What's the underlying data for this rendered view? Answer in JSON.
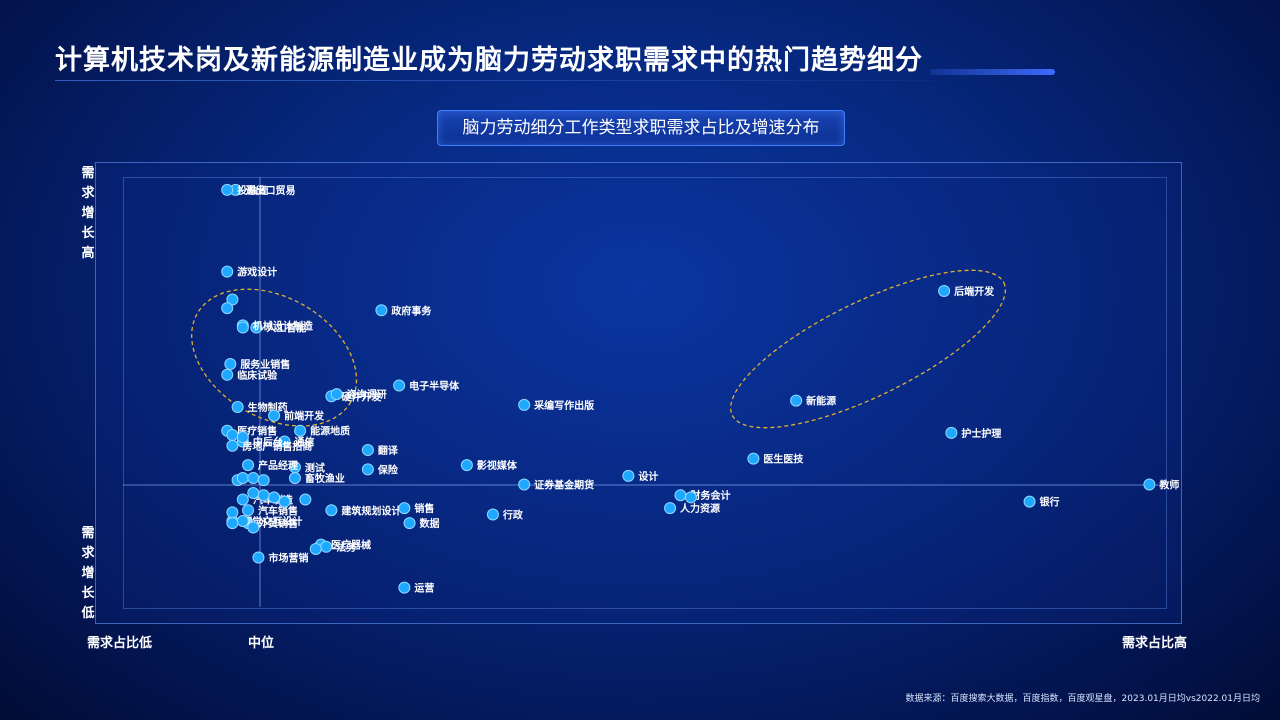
{
  "header": {
    "title": "计算机技术岗及新能源制造业成为脑力劳动求职需求中的热门趋势细分",
    "subtitle": "脑力劳动细分工作类型求职需求占比及增速分布"
  },
  "axes": {
    "y_high": "需求增长高",
    "y_low": "需求增长低",
    "x_low": "需求占比低",
    "x_mid": "中位",
    "x_high": "需求占比高"
  },
  "source": "数据来源：百度搜索大数据，百度指数，百度观星盘，2023.01月日均vs2022.01月日均",
  "colors": {
    "point": "#1fa8ff",
    "highlight_ellipse": "#e0b030",
    "background": "#06267a"
  },
  "chart_data": {
    "type": "scatter",
    "title": "脑力劳动细分工作类型求职需求占比及增速分布",
    "xlabel": "需求占比",
    "ylabel": "需求增长",
    "x_range": [
      0,
      100
    ],
    "y_range": [
      0,
      100
    ],
    "grid": false,
    "points": [
      {
        "label": "进出口贸易",
        "x": 10.8,
        "y": 97
      },
      {
        "label": "投融资",
        "x": 10.0,
        "y": 97
      },
      {
        "label": "游戏设计",
        "x": 10.0,
        "y": 78
      },
      {
        "label": "政府事务",
        "x": 24.8,
        "y": 69
      },
      {
        "label": "人工智能",
        "x": 12.8,
        "y": 65
      },
      {
        "label": "机械设计制造",
        "x": 11.5,
        "y": 65.5
      },
      {
        "label": "服务业销售",
        "x": 10.3,
        "y": 56.5
      },
      {
        "label": "临床试验",
        "x": 10.0,
        "y": 54
      },
      {
        "label": "硬件开发",
        "x": 20.0,
        "y": 49
      },
      {
        "label": "咨询调研",
        "x": 20.5,
        "y": 49.5
      },
      {
        "label": "电子半导体",
        "x": 26.5,
        "y": 51.5
      },
      {
        "label": "采编写作出版",
        "x": 38.5,
        "y": 47
      },
      {
        "label": "后端开发",
        "x": 78.8,
        "y": 73.5
      },
      {
        "label": "新能源",
        "x": 64.6,
        "y": 48
      },
      {
        "label": "护士护理",
        "x": 79.5,
        "y": 40.5
      },
      {
        "label": "生物制药",
        "x": 11.0,
        "y": 46.5
      },
      {
        "label": "前端开发",
        "x": 14.5,
        "y": 44.5
      },
      {
        "label": "医疗销售",
        "x": 10.0,
        "y": 41
      },
      {
        "label": "能源地质",
        "x": 17.0,
        "y": 41
      },
      {
        "label": "通信",
        "x": 15.5,
        "y": 38.5
      },
      {
        "label": "中后台",
        "x": 11.5,
        "y": 38.5
      },
      {
        "label": "翻译",
        "x": 23.5,
        "y": 36.5
      },
      {
        "label": "医生医技",
        "x": 60.5,
        "y": 34.5
      },
      {
        "label": "房地产销售招商",
        "x": 10.5,
        "y": 37.5
      },
      {
        "label": "测试",
        "x": 16.5,
        "y": 32.5
      },
      {
        "label": "产品经理",
        "x": 12.0,
        "y": 33
      },
      {
        "label": "保险",
        "x": 23.5,
        "y": 32
      },
      {
        "label": "影视媒体",
        "x": 33.0,
        "y": 33
      },
      {
        "label": "设计",
        "x": 48.5,
        "y": 30.5
      },
      {
        "label": "畜牧渔业",
        "x": 16.5,
        "y": 30
      },
      {
        "label": "证券基金期货",
        "x": 38.5,
        "y": 28.5
      },
      {
        "label": "教师",
        "x": 98.5,
        "y": 28.5
      },
      {
        "label": "财务会计",
        "x": 53.5,
        "y": 26
      },
      {
        "label": "银行",
        "x": 87.0,
        "y": 24.5
      },
      {
        "label": "汽车制造",
        "x": 11.5,
        "y": 25
      },
      {
        "label": "建筑规划设计",
        "x": 20.0,
        "y": 22.5
      },
      {
        "label": "汽车销售",
        "x": 12.0,
        "y": 22.5
      },
      {
        "label": "销售",
        "x": 27.0,
        "y": 23
      },
      {
        "label": "人力资源",
        "x": 52.5,
        "y": 23
      },
      {
        "label": "行政",
        "x": 35.5,
        "y": 21.5
      },
      {
        "label": "外贸销售",
        "x": 12.0,
        "y": 19.5
      },
      {
        "label": "数据",
        "x": 27.5,
        "y": 19.5
      },
      {
        "label": "视觉交互设计",
        "x": 10.5,
        "y": 20
      },
      {
        "label": "医疗器械",
        "x": 19.0,
        "y": 14.5
      },
      {
        "label": "法务",
        "x": 19.5,
        "y": 14
      },
      {
        "label": "市场营销",
        "x": 13.0,
        "y": 11.5
      },
      {
        "label": "运营",
        "x": 27.0,
        "y": 4.5
      },
      {
        "label": "",
        "x": 10.5,
        "y": 71.5
      },
      {
        "label": "",
        "x": 10.0,
        "y": 69.5
      },
      {
        "label": "",
        "x": 11.5,
        "y": 65
      },
      {
        "label": "",
        "x": 10.5,
        "y": 40
      },
      {
        "label": "",
        "x": 11.5,
        "y": 39.5
      },
      {
        "label": "",
        "x": 11.0,
        "y": 29.5
      },
      {
        "label": "",
        "x": 11.5,
        "y": 30
      },
      {
        "label": "",
        "x": 12.5,
        "y": 30
      },
      {
        "label": "",
        "x": 13.5,
        "y": 29.5
      },
      {
        "label": "",
        "x": 12.5,
        "y": 26.5
      },
      {
        "label": "",
        "x": 13.5,
        "y": 26
      },
      {
        "label": "",
        "x": 14.5,
        "y": 25.5
      },
      {
        "label": "",
        "x": 15.5,
        "y": 24.5
      },
      {
        "label": "",
        "x": 17.5,
        "y": 25
      },
      {
        "label": "",
        "x": 10.5,
        "y": 22
      },
      {
        "label": "",
        "x": 11.5,
        "y": 20
      },
      {
        "label": "",
        "x": 10.5,
        "y": 19.5
      },
      {
        "label": "",
        "x": 12.5,
        "y": 18.5
      },
      {
        "label": "",
        "x": 54.5,
        "y": 25.5
      },
      {
        "label": "",
        "x": 18.5,
        "y": 13.5
      }
    ],
    "highlights": [
      {
        "label": "人工智能/机械设计制造/硬件开发 cluster",
        "cx": 14.5,
        "cy": 58,
        "rx": 8.5,
        "ry": 14,
        "rotate": 30
      },
      {
        "label": "后端开发/新能源 cluster",
        "cx": 71.5,
        "cy": 60,
        "rx": 14.5,
        "ry": 11,
        "rotate": -26
      }
    ]
  }
}
